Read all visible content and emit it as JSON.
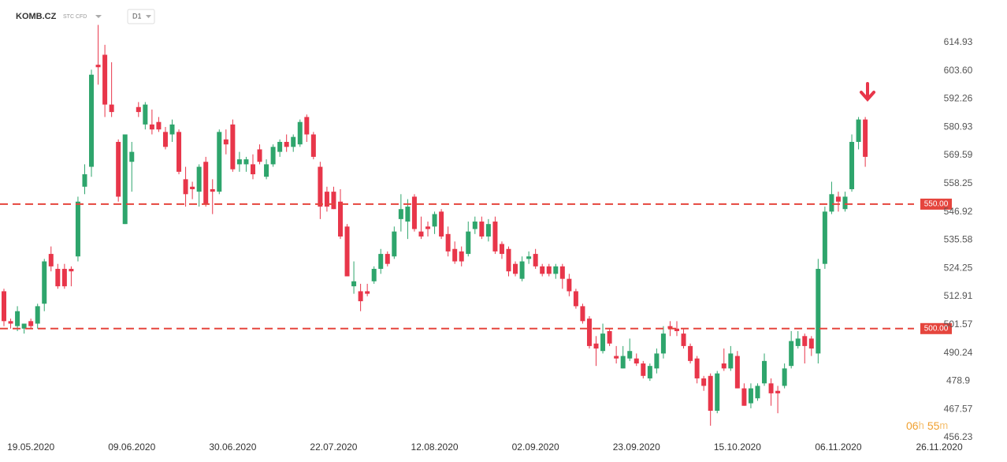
{
  "header": {
    "symbol": "KOMB.CZ",
    "instrument": "STC CFD",
    "timeframe": "D1"
  },
  "timer": [
    "06",
    "h",
    "55",
    "m"
  ],
  "chart_data": {
    "type": "candlestick",
    "categories": [
      null,
      null,
      null,
      null,
      "19.05.2020",
      null,
      null,
      null,
      null,
      null,
      null,
      null,
      null,
      null,
      null,
      null,
      null,
      null,
      null,
      "09.06.2020",
      null,
      null,
      null,
      null,
      null,
      null,
      null,
      null,
      null,
      null,
      null,
      null,
      null,
      null,
      "30.06.2020",
      null,
      null,
      null,
      null,
      null,
      null,
      null,
      null,
      null,
      null,
      null,
      null,
      null,
      null,
      "22.07.2020",
      null,
      null,
      null,
      null,
      null,
      null,
      null,
      null,
      null,
      null,
      null,
      null,
      null,
      null,
      "12.08.2020",
      null,
      null,
      null,
      null,
      null,
      null,
      null,
      null,
      null,
      null,
      null,
      null,
      null,
      null,
      "02.09.2020",
      null,
      null,
      null,
      null,
      null,
      null,
      null,
      null,
      null,
      null,
      null,
      null,
      null,
      null,
      "23.09.2020",
      null,
      null,
      null,
      null,
      null,
      null,
      null,
      null,
      null,
      null,
      null,
      null,
      null,
      null,
      "15.10.2020",
      null,
      null,
      null,
      null,
      null,
      null,
      null,
      null,
      null,
      null,
      null,
      null,
      null,
      null,
      "06.11.2020",
      null,
      null,
      null,
      null,
      null,
      null,
      null,
      null,
      null,
      null,
      null,
      null,
      null,
      null,
      "26.11.2020"
    ],
    "open": [
      515,
      503,
      501,
      500,
      503,
      502,
      510,
      530,
      524,
      524,
      524,
      529,
      557,
      565,
      606,
      610,
      590,
      575,
      542,
      567,
      589,
      582,
      582,
      583,
      579,
      578,
      579,
      560,
      557,
      555,
      567,
      556,
      555,
      576,
      582,
      566,
      566,
      566,
      572,
      561,
      566,
      571,
      575,
      573,
      574,
      585,
      578,
      565,
      555,
      555,
      551,
      541,
      517,
      515,
      515,
      519,
      524,
      530,
      529,
      544,
      543,
      553,
      539,
      541,
      541,
      547,
      538,
      532,
      531,
      530,
      540,
      543,
      537,
      543,
      534,
      532,
      526,
      520,
      528,
      530,
      525,
      525,
      522,
      525,
      520,
      515,
      509,
      504,
      494,
      491,
      499,
      489,
      484,
      488,
      488,
      486,
      480,
      484,
      490,
      501,
      500,
      498,
      493,
      488,
      480,
      481,
      467,
      486,
      484,
      489,
      476,
      470,
      472,
      478,
      478,
      475,
      477,
      485,
      493,
      497,
      496,
      490,
      526,
      547,
      553,
      548,
      556,
      575,
      584,
      null,
      null,
      null,
      null,
      null,
      null,
      null,
      null,
      null,
      null,
      null
    ],
    "high": [
      516,
      504,
      509,
      502,
      504,
      510,
      528,
      533,
      526,
      526,
      525,
      553,
      566,
      604,
      622,
      614,
      607,
      576,
      578,
      575,
      591,
      591,
      588,
      585,
      581,
      584,
      580,
      565,
      559,
      566,
      569,
      560,
      580,
      580,
      584,
      571,
      569,
      570,
      574,
      568,
      574,
      576,
      578,
      578,
      584,
      586,
      579,
      567,
      557,
      557,
      556,
      542,
      527,
      518,
      518,
      525,
      532,
      531,
      541,
      554,
      552,
      554,
      545,
      543,
      547,
      548,
      541,
      535,
      533,
      543,
      545,
      545,
      544,
      545,
      535,
      533,
      527,
      529,
      531,
      532,
      526,
      526,
      526,
      526,
      522,
      516,
      510,
      505,
      497,
      502,
      500,
      493,
      493,
      496,
      490,
      487,
      486,
      492,
      501,
      503,
      503,
      500,
      494,
      489,
      481,
      482,
      483,
      492,
      493,
      491,
      478,
      478,
      478,
      490,
      480,
      477,
      486,
      499,
      499,
      498,
      497,
      528,
      549,
      559,
      555,
      555,
      578,
      585,
      585,
      null,
      null,
      null,
      null,
      null,
      null,
      null,
      null,
      null,
      null,
      null
    ],
    "low": [
      501,
      500,
      499,
      498,
      500,
      500,
      507,
      523,
      516,
      516,
      517,
      527,
      554,
      561,
      598,
      585,
      585,
      551,
      542,
      555,
      585,
      580,
      578,
      579,
      572,
      575,
      562,
      549,
      552,
      549,
      549,
      546,
      554,
      570,
      563,
      563,
      563,
      560,
      566,
      560,
      565,
      569,
      571,
      571,
      573,
      575,
      568,
      544,
      547,
      548,
      536,
      521,
      514,
      507,
      513,
      518,
      522,
      525,
      528,
      539,
      536,
      539,
      536,
      537,
      538,
      536,
      529,
      526,
      525,
      529,
      538,
      536,
      535,
      530,
      528,
      521,
      521,
      519,
      526,
      524,
      521,
      521,
      520,
      516,
      513,
      508,
      502,
      492,
      485,
      490,
      493,
      486,
      484,
      487,
      485,
      480,
      479,
      482,
      488,
      497,
      497,
      492,
      486,
      478,
      475,
      461,
      466,
      483,
      483,
      476,
      469,
      468,
      471,
      477,
      469,
      466,
      476,
      484,
      492,
      486,
      489,
      486,
      524,
      546,
      547,
      547,
      555,
      572,
      565,
      null,
      null,
      null,
      null,
      null,
      null,
      null,
      null,
      null,
      null,
      null
    ],
    "close": [
      503,
      502,
      507,
      502,
      501,
      509,
      527,
      525,
      517,
      517,
      523,
      551,
      562,
      602,
      605,
      590,
      587,
      553,
      578,
      571,
      587,
      590,
      580,
      580,
      573,
      582,
      563,
      554,
      556,
      565,
      550,
      555,
      579,
      574,
      564,
      568,
      568,
      562,
      567,
      566,
      573,
      575,
      573,
      577,
      583,
      578,
      569,
      549,
      549,
      548,
      537,
      521,
      519,
      511,
      514,
      524,
      530,
      526,
      539,
      548,
      549,
      540,
      537,
      540,
      546,
      537,
      531,
      527,
      527,
      539,
      543,
      537,
      542,
      531,
      530,
      523,
      522,
      527,
      529,
      525,
      522,
      522,
      525,
      520,
      515,
      509,
      503,
      493,
      492,
      498,
      494,
      488,
      489,
      491,
      486,
      481,
      485,
      490,
      498,
      500,
      499,
      493,
      487,
      480,
      477,
      467,
      482,
      484,
      490,
      476,
      469,
      476,
      477,
      487,
      474,
      474,
      484,
      495,
      496,
      493,
      492,
      524,
      547,
      554,
      551,
      553,
      575,
      584,
      569,
      null,
      null,
      null,
      null,
      null,
      null,
      null,
      null,
      null,
      null,
      null
    ],
    "up_color": "#2ea56c",
    "down_color": "#e8364a",
    "ylim": [
      454.65,
      632.0
    ],
    "yticks": [
      614.93,
      {
        "value": 603.6,
        "label": "603.60"
      },
      592.26,
      580.93,
      569.59,
      558.25,
      546.92,
      535.58,
      524.25,
      512.91,
      501.57,
      490.24,
      478.9,
      467.57,
      456.23
    ],
    "hlines": [
      {
        "value": 550,
        "label": "550.00"
      },
      {
        "value": 500,
        "label": "500.00"
      }
    ],
    "hline_color": "#e5453d",
    "grid": false
  }
}
